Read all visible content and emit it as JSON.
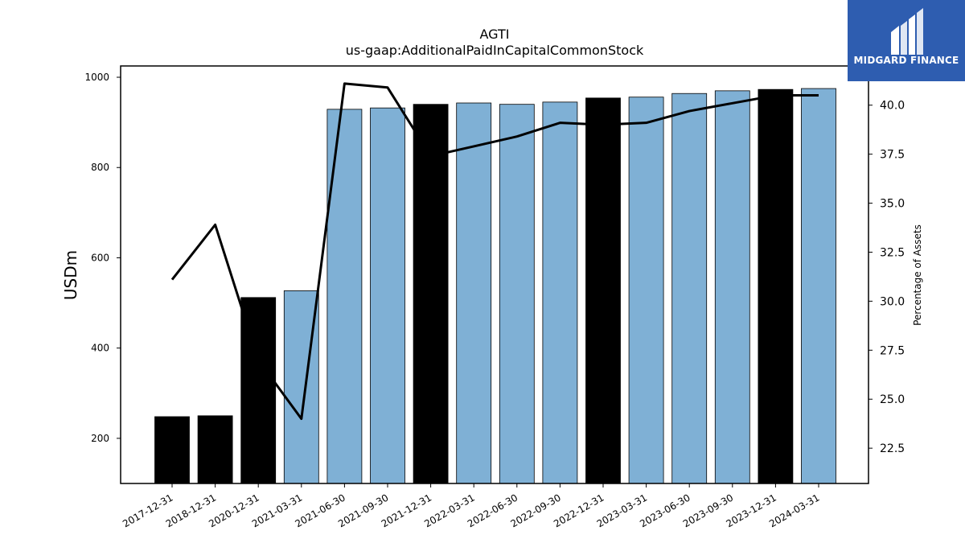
{
  "brand": {
    "name": "MIDGARD FINANCE",
    "background": "#2e5db0",
    "icon": "midgard-logo-icon"
  },
  "chart_data": {
    "type": "bar",
    "title": "AGTI",
    "subtitle": "us-gaap:AdditionalPaidInCapitalCommonStock",
    "ylabel": "USDm",
    "y2label": "Percentage of Assets",
    "categories": [
      "2017-12-31",
      "2018-12-31",
      "2020-12-31",
      "2021-03-31",
      "2021-06-30",
      "2021-09-30",
      "2021-12-31",
      "2022-03-31",
      "2022-06-30",
      "2022-09-30",
      "2022-12-31",
      "2023-03-31",
      "2023-06-30",
      "2023-09-30",
      "2023-12-31",
      "2024-03-31"
    ],
    "series": [
      {
        "type": "bar",
        "axis": "left",
        "values": [
          248,
          250,
          512,
          527,
          929,
          932,
          940,
          943,
          940,
          945,
          954,
          956,
          964,
          970,
          973,
          975
        ],
        "colors": [
          "#000000",
          "#000000",
          "#000000",
          "#7fb0d5",
          "#7fb0d5",
          "#7fb0d5",
          "#000000",
          "#7fb0d5",
          "#7fb0d5",
          "#7fb0d5",
          "#000000",
          "#7fb0d5",
          "#7fb0d5",
          "#7fb0d5",
          "#000000",
          "#7fb0d5"
        ]
      },
      {
        "type": "line",
        "axis": "right",
        "color": "#000000",
        "values": [
          31.1,
          33.9,
          27.0,
          24.0,
          41.1,
          40.9,
          37.4,
          37.9,
          38.4,
          39.1,
          39.0,
          39.1,
          39.7,
          40.1,
          40.5,
          40.5
        ]
      }
    ],
    "ylim": [
      100,
      1025
    ],
    "y_ticks": [
      200,
      400,
      600,
      800,
      1000
    ],
    "y2lim": [
      20.7,
      42.0
    ],
    "y2_ticks": [
      "22.5",
      "25.0",
      "27.5",
      "30.0",
      "32.5",
      "35.0",
      "37.5",
      "40.0"
    ],
    "grid": false
  }
}
